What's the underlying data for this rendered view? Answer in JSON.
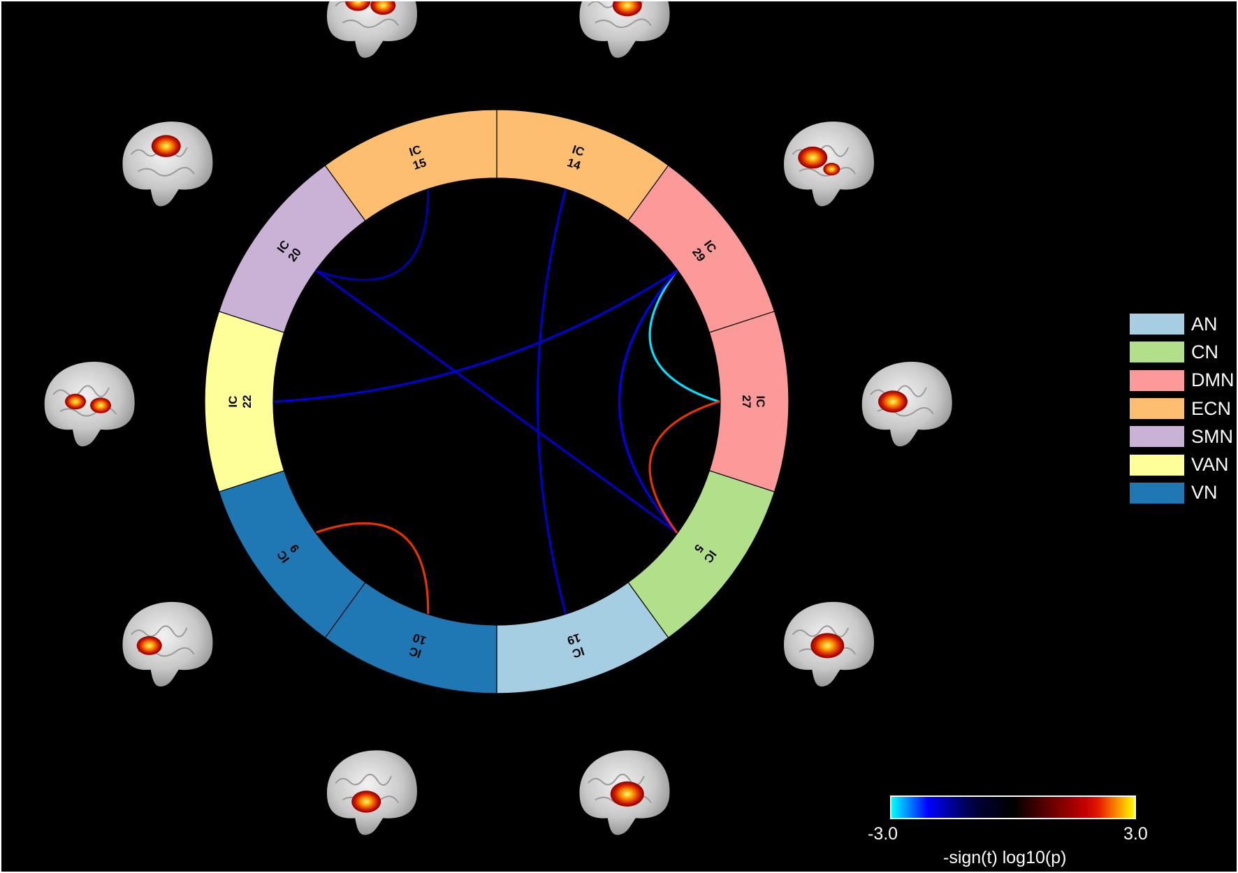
{
  "networks": [
    {
      "code": "AN",
      "color": "#a6cee3"
    },
    {
      "code": "CN",
      "color": "#b2df8a"
    },
    {
      "code": "DMN",
      "color": "#fb9a99"
    },
    {
      "code": "ECN",
      "color": "#fdbf6f"
    },
    {
      "code": "SMN",
      "color": "#cab2d6"
    },
    {
      "code": "VAN",
      "color": "#ffff99"
    },
    {
      "code": "VN",
      "color": "#1f78b4"
    }
  ],
  "segments": [
    {
      "ic_label": "IC",
      "ic_number": "14",
      "network": "ECN"
    },
    {
      "ic_label": "IC",
      "ic_number": "29",
      "network": "DMN"
    },
    {
      "ic_label": "IC",
      "ic_number": "27",
      "network": "DMN"
    },
    {
      "ic_label": "IC",
      "ic_number": "5",
      "network": "CN"
    },
    {
      "ic_label": "IC",
      "ic_number": "19",
      "network": "AN"
    },
    {
      "ic_label": "IC",
      "ic_number": "10",
      "network": "VN"
    },
    {
      "ic_label": "IC",
      "ic_number": "9",
      "network": "VN"
    },
    {
      "ic_label": "IC",
      "ic_number": "22",
      "network": "VAN"
    },
    {
      "ic_label": "IC",
      "ic_number": "20",
      "network": "SMN"
    },
    {
      "ic_label": "IC",
      "ic_number": "15",
      "network": "ECN"
    }
  ],
  "connections": [
    {
      "from": "15",
      "to": "20",
      "value": -1.6
    },
    {
      "from": "20",
      "to": "5",
      "value": -1.8
    },
    {
      "from": "22",
      "to": "29",
      "value": -1.9
    },
    {
      "from": "14",
      "to": "19",
      "value": -1.8
    },
    {
      "from": "29",
      "to": "27",
      "value": -2.9
    },
    {
      "from": "29",
      "to": "5",
      "value": -2.0
    },
    {
      "from": "27",
      "to": "5",
      "value": 2.2
    },
    {
      "from": "9",
      "to": "10",
      "value": 2.2
    }
  ],
  "colorbar": {
    "min_label": "-3.0",
    "max_label": "3.0",
    "title": "-sign(t) log10(p)",
    "range": [
      -3.0,
      3.0
    ]
  }
}
